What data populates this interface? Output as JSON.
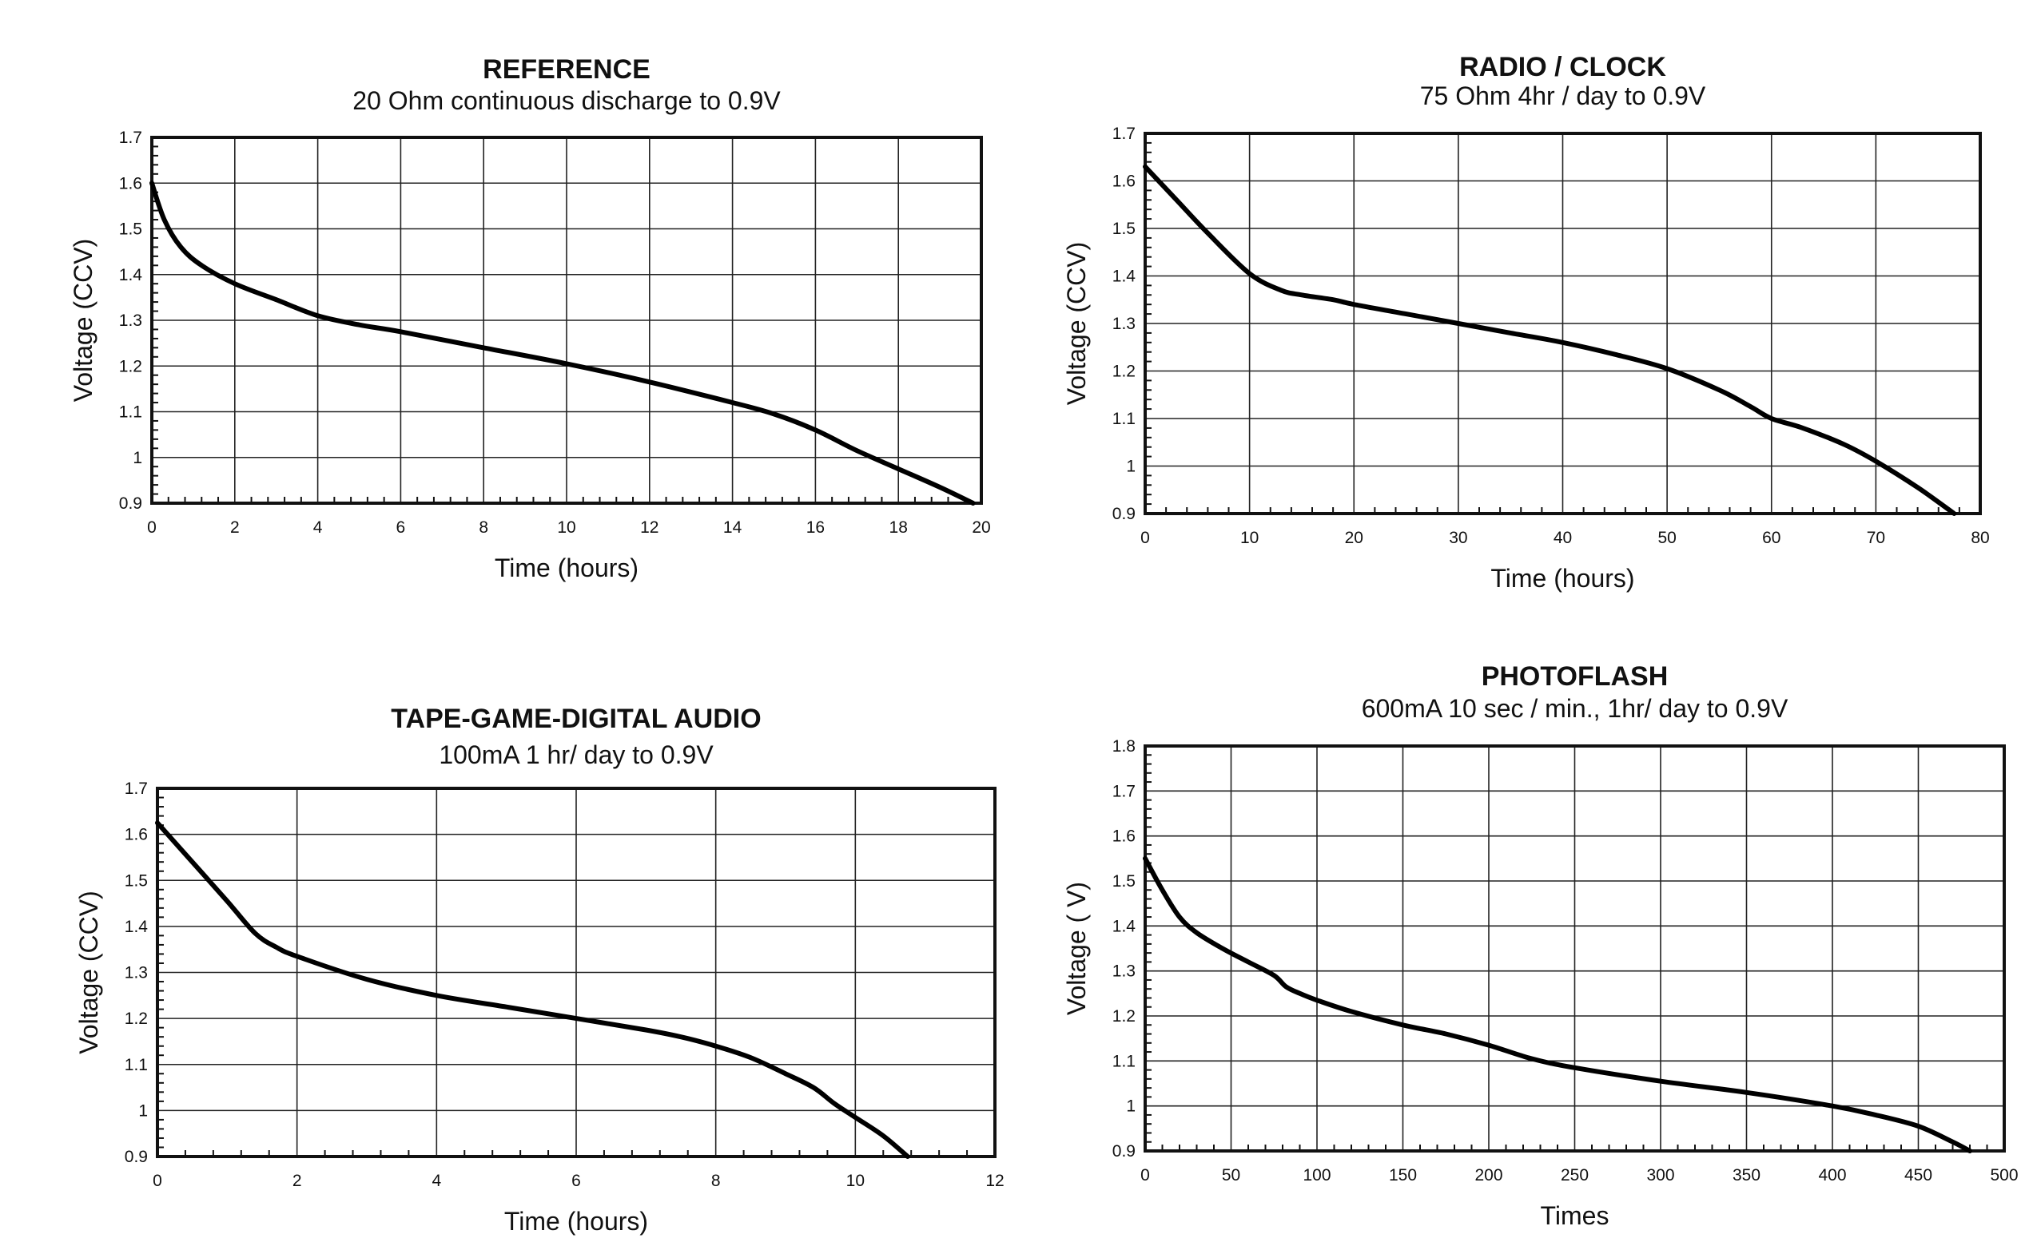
{
  "chart_data": [
    {
      "type": "line",
      "title": "REFERENCE",
      "subtitle": "20 Ohm continuous discharge to 0.9V",
      "xlabel": "Time (hours)",
      "ylabel": "Voltage (CCV)",
      "xlim": [
        0,
        20
      ],
      "ylim": [
        0.9,
        1.7
      ],
      "xticks": [
        0,
        2,
        4,
        6,
        8,
        10,
        12,
        14,
        16,
        18,
        20
      ],
      "yticks": [
        0.9,
        1,
        1.1,
        1.2,
        1.3,
        1.4,
        1.5,
        1.6,
        1.7
      ],
      "xtick_labels": [
        "0",
        "2",
        "4",
        "6",
        "8",
        "10",
        "12",
        "14",
        "16",
        "18",
        "20"
      ],
      "ytick_labels": [
        "0.9",
        "1",
        "1.1",
        "1.2",
        "1.3",
        "1.4",
        "1.5",
        "1.6",
        "1.7"
      ],
      "grid": true,
      "series": [
        {
          "x": [
            0,
            0.3,
            0.7,
            1.2,
            2,
            3,
            4,
            5,
            6,
            8,
            10,
            12,
            14,
            15,
            16,
            17,
            18,
            19,
            19.8
          ],
          "y": [
            1.6,
            1.52,
            1.46,
            1.42,
            1.38,
            1.345,
            1.31,
            1.29,
            1.275,
            1.24,
            1.205,
            1.165,
            1.12,
            1.095,
            1.06,
            1.015,
            0.975,
            0.935,
            0.9
          ]
        }
      ]
    },
    {
      "type": "line",
      "title": "RADIO / CLOCK",
      "subtitle": "75 Ohm 4hr / day to 0.9V",
      "xlabel": "Time (hours)",
      "ylabel": "Voltage (CCV)",
      "xlim": [
        0,
        80
      ],
      "ylim": [
        0.9,
        1.7
      ],
      "xticks": [
        0,
        10,
        20,
        30,
        40,
        50,
        60,
        70,
        80
      ],
      "yticks": [
        0.9,
        1,
        1.1,
        1.2,
        1.3,
        1.4,
        1.5,
        1.6,
        1.7
      ],
      "xtick_labels": [
        "0",
        "10",
        "20",
        "30",
        "40",
        "50",
        "60",
        "70",
        "80"
      ],
      "ytick_labels": [
        "0.9",
        "1",
        "1.1",
        "1.2",
        "1.3",
        "1.4",
        "1.5",
        "1.6",
        "1.7"
      ],
      "grid": true,
      "series": [
        {
          "x": [
            0,
            3,
            6,
            10,
            13,
            15,
            18,
            20,
            25,
            30,
            35,
            40,
            45,
            50,
            55,
            58,
            60,
            63,
            67,
            70,
            74,
            77.5
          ],
          "y": [
            1.63,
            1.56,
            1.49,
            1.405,
            1.37,
            1.36,
            1.35,
            1.34,
            1.32,
            1.3,
            1.28,
            1.26,
            1.235,
            1.205,
            1.16,
            1.125,
            1.1,
            1.08,
            1.045,
            1.01,
            0.955,
            0.9
          ]
        }
      ]
    },
    {
      "type": "line",
      "title": "TAPE-GAME-DIGITAL AUDIO",
      "subtitle": "100mA 1 hr/ day to 0.9V",
      "xlabel": "Time (hours)",
      "ylabel": "Voltage (CCV)",
      "xlim": [
        0,
        12
      ],
      "ylim": [
        0.9,
        1.7
      ],
      "xticks": [
        0,
        2,
        4,
        6,
        8,
        10,
        12
      ],
      "yticks": [
        0.9,
        1,
        1.1,
        1.2,
        1.3,
        1.4,
        1.5,
        1.6,
        1.7
      ],
      "xtick_labels": [
        "0",
        "2",
        "4",
        "6",
        "8",
        "10",
        "12"
      ],
      "ytick_labels": [
        "0.9",
        "1",
        "1.1",
        "1.2",
        "1.3",
        "1.4",
        "1.5",
        "1.6",
        "1.7"
      ],
      "grid": true,
      "series": [
        {
          "x": [
            0,
            0.5,
            1,
            1.4,
            1.7,
            2,
            3,
            4,
            5,
            6,
            7,
            7.5,
            8,
            8.5,
            9,
            9.4,
            9.7,
            10,
            10.4,
            10.75
          ],
          "y": [
            1.625,
            1.54,
            1.455,
            1.385,
            1.355,
            1.335,
            1.285,
            1.25,
            1.225,
            1.2,
            1.175,
            1.16,
            1.14,
            1.115,
            1.08,
            1.05,
            1.015,
            0.985,
            0.945,
            0.9
          ]
        }
      ]
    },
    {
      "type": "line",
      "title": "PHOTOFLASH",
      "subtitle": "600mA 10 sec / min., 1hr/ day to 0.9V",
      "xlabel": "Times",
      "ylabel": "Voltage ( V)",
      "xlim": [
        0,
        500
      ],
      "ylim": [
        0.9,
        1.8
      ],
      "xticks": [
        0,
        50,
        100,
        150,
        200,
        250,
        300,
        350,
        400,
        450,
        500
      ],
      "yticks": [
        0.9,
        1,
        1.1,
        1.2,
        1.3,
        1.4,
        1.5,
        1.6,
        1.7,
        1.8
      ],
      "xtick_labels": [
        "0",
        "50",
        "100",
        "150",
        "200",
        "250",
        "300",
        "350",
        "400",
        "450",
        "500"
      ],
      "ytick_labels": [
        "0.9",
        "1",
        "1.1",
        "1.2",
        "1.3",
        "1.4",
        "1.5",
        "1.6",
        "1.7",
        "1.8"
      ],
      "grid": true,
      "series": [
        {
          "x": [
            0,
            10,
            20,
            30,
            45,
            60,
            75,
            82,
            90,
            100,
            120,
            150,
            175,
            200,
            225,
            250,
            300,
            350,
            400,
            425,
            450,
            470,
            480
          ],
          "y": [
            1.55,
            1.48,
            1.42,
            1.385,
            1.35,
            1.32,
            1.29,
            1.265,
            1.25,
            1.235,
            1.21,
            1.18,
            1.16,
            1.135,
            1.105,
            1.085,
            1.055,
            1.03,
            1.0,
            0.98,
            0.955,
            0.92,
            0.9
          ]
        }
      ]
    }
  ]
}
